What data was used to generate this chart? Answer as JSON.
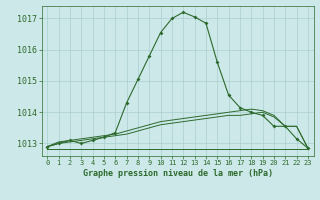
{
  "xlabel": "Graphe pression niveau de la mer (hPa)",
  "x": [
    0,
    1,
    2,
    3,
    4,
    5,
    6,
    7,
    8,
    9,
    10,
    11,
    12,
    13,
    14,
    15,
    16,
    17,
    18,
    19,
    20,
    21,
    22,
    23
  ],
  "line1": [
    1012.9,
    1013.0,
    1013.1,
    1013.0,
    1013.1,
    1013.2,
    1013.35,
    1014.3,
    1015.05,
    1015.8,
    1016.55,
    1017.0,
    1017.2,
    1017.05,
    1016.85,
    1015.6,
    1014.55,
    1014.15,
    1014.0,
    1013.9,
    1013.55,
    1013.55,
    1013.15,
    1012.85
  ],
  "line2": [
    1012.82,
    1012.82,
    1012.82,
    1012.82,
    1012.82,
    1012.82,
    1012.82,
    1012.82,
    1012.82,
    1012.82,
    1012.82,
    1012.82,
    1012.82,
    1012.82,
    1012.82,
    1012.82,
    1012.82,
    1012.82,
    1012.82,
    1012.82,
    1012.82,
    1012.82,
    1012.82,
    1012.82
  ],
  "line3": [
    1012.9,
    1013.0,
    1013.05,
    1013.1,
    1013.15,
    1013.2,
    1013.25,
    1013.3,
    1013.4,
    1013.5,
    1013.6,
    1013.65,
    1013.7,
    1013.75,
    1013.8,
    1013.85,
    1013.9,
    1013.9,
    1013.95,
    1014.0,
    1013.85,
    1013.55,
    1013.55,
    1012.85
  ],
  "line4": [
    1012.9,
    1013.05,
    1013.1,
    1013.15,
    1013.2,
    1013.25,
    1013.3,
    1013.4,
    1013.5,
    1013.6,
    1013.7,
    1013.75,
    1013.8,
    1013.85,
    1013.9,
    1013.95,
    1014.0,
    1014.05,
    1014.1,
    1014.05,
    1013.9,
    1013.55,
    1013.55,
    1012.85
  ],
  "line_color": "#2d6a2d",
  "bg_color": "#cce8e8",
  "grid_color": "#aacfcf",
  "ylim": [
    1012.6,
    1017.4
  ],
  "yticks": [
    1013,
    1014,
    1015,
    1016,
    1017
  ],
  "xticks": [
    0,
    1,
    2,
    3,
    4,
    5,
    6,
    7,
    8,
    9,
    10,
    11,
    12,
    13,
    14,
    15,
    16,
    17,
    18,
    19,
    20,
    21,
    22,
    23
  ]
}
